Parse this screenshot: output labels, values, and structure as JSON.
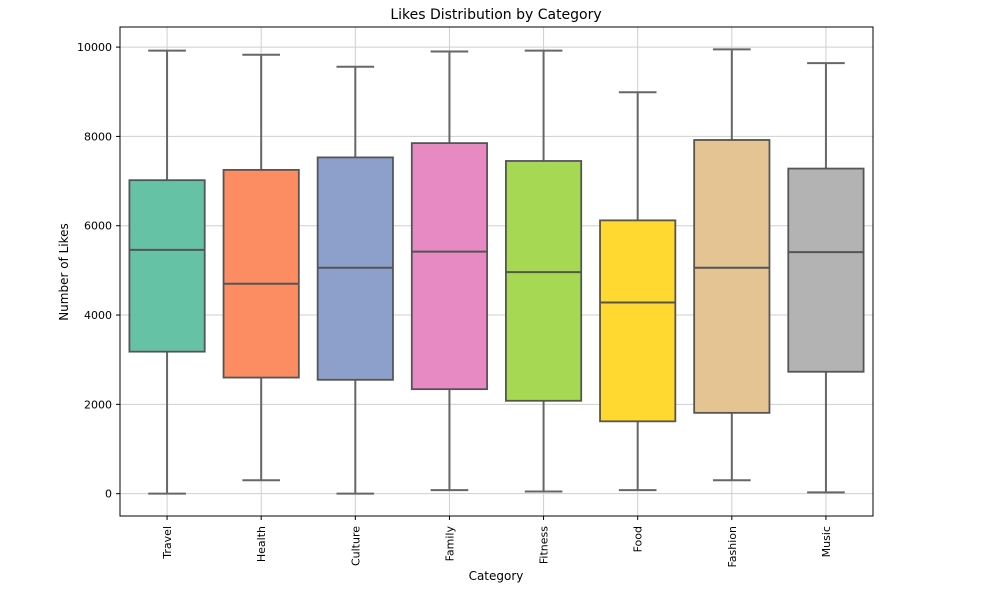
{
  "chart_data": {
    "type": "box",
    "title": "Likes Distribution by Category",
    "xlabel": "Category",
    "ylabel": "Number of Likes",
    "ylim": [
      -500,
      10450
    ],
    "yticks": [
      0,
      2000,
      4000,
      6000,
      8000,
      10000
    ],
    "grid": true,
    "categories": [
      "Travel",
      "Health",
      "Culture",
      "Family",
      "Fitness",
      "Food",
      "Fashion",
      "Music"
    ],
    "boxes": [
      {
        "category": "Travel",
        "min": 0,
        "q1": 3180,
        "median": 5460,
        "q3": 7020,
        "max": 9920,
        "color": "#66c2a5"
      },
      {
        "category": "Health",
        "min": 300,
        "q1": 2600,
        "median": 4700,
        "q3": 7250,
        "max": 9830,
        "color": "#fc8d62"
      },
      {
        "category": "Culture",
        "min": 0,
        "q1": 2550,
        "median": 5060,
        "q3": 7530,
        "max": 9560,
        "color": "#8da0cb"
      },
      {
        "category": "Family",
        "min": 80,
        "q1": 2340,
        "median": 5420,
        "q3": 7850,
        "max": 9900,
        "color": "#e78ac3"
      },
      {
        "category": "Fitness",
        "min": 50,
        "q1": 2080,
        "median": 4960,
        "q3": 7450,
        "max": 9920,
        "color": "#a6d854"
      },
      {
        "category": "Food",
        "min": 80,
        "q1": 1620,
        "median": 4280,
        "q3": 6120,
        "max": 8990,
        "color": "#ffd92f"
      },
      {
        "category": "Fashion",
        "min": 300,
        "q1": 1810,
        "median": 5060,
        "q3": 7920,
        "max": 9950,
        "color": "#e5c494"
      },
      {
        "category": "Music",
        "min": 30,
        "q1": 2730,
        "median": 5410,
        "q3": 7280,
        "max": 9640,
        "color": "#b3b3b3"
      }
    ]
  }
}
